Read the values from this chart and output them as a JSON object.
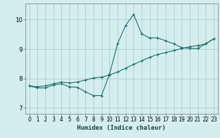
{
  "xlabel": "Humidex (Indice chaleur)",
  "background_color": "#d4eeee",
  "grid_color": "#aacccc",
  "line_color": "#1a6b6b",
  "xlim": [
    -0.5,
    23.5
  ],
  "ylim": [
    6.8,
    10.55
  ],
  "yticks": [
    7,
    8,
    9,
    10
  ],
  "xticks": [
    0,
    1,
    2,
    3,
    4,
    5,
    6,
    7,
    8,
    9,
    10,
    11,
    12,
    13,
    14,
    15,
    16,
    17,
    18,
    19,
    20,
    21,
    22,
    23
  ],
  "series1_x": [
    0,
    1,
    2,
    3,
    4,
    5,
    6,
    7,
    8,
    9,
    10,
    11,
    12,
    13,
    14,
    15,
    16,
    17,
    18,
    19,
    20,
    21,
    22,
    23
  ],
  "series1_y": [
    7.75,
    7.68,
    7.68,
    7.78,
    7.82,
    7.72,
    7.7,
    7.55,
    7.42,
    7.42,
    8.15,
    9.18,
    9.8,
    10.18,
    9.52,
    9.38,
    9.38,
    9.28,
    9.18,
    9.05,
    9.02,
    9.02,
    9.18,
    9.35
  ],
  "series2_x": [
    0,
    1,
    2,
    3,
    4,
    5,
    6,
    7,
    8,
    9,
    10,
    11,
    12,
    13,
    14,
    15,
    16,
    17,
    18,
    19,
    20,
    21,
    22,
    23
  ],
  "series2_y": [
    7.75,
    7.72,
    7.75,
    7.82,
    7.88,
    7.85,
    7.88,
    7.95,
    8.02,
    8.05,
    8.12,
    8.22,
    8.35,
    8.48,
    8.6,
    8.72,
    8.82,
    8.88,
    8.95,
    9.02,
    9.08,
    9.12,
    9.18,
    9.35
  ],
  "tick_fontsize": 5.5,
  "xlabel_fontsize": 6.5
}
